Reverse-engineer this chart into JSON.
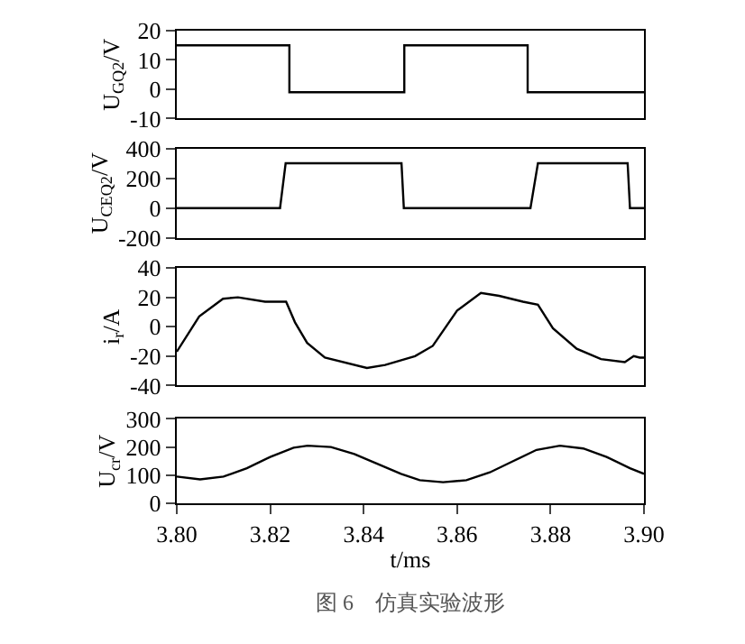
{
  "chart_data": [
    {
      "type": "line",
      "ylabel": "U$_{GQ2}$/V",
      "x": [
        3.8,
        3.8241,
        3.8241,
        3.8487,
        3.8487,
        3.8751,
        3.8751,
        3.9
      ],
      "values": [
        15,
        15,
        -1,
        -1,
        15,
        15,
        -1,
        -1
      ],
      "color": "#000000",
      "xlim": [
        3.8,
        3.9
      ],
      "ylim": [
        -10,
        20
      ],
      "yticks": [
        -10,
        0,
        10,
        20
      ],
      "tick_labels": "y"
    },
    {
      "type": "line",
      "ylabel": "U$_{CEQ2}$/V",
      "x": [
        3.8,
        3.8221,
        3.8233,
        3.8481,
        3.8486,
        3.8757,
        3.8773,
        3.8965,
        3.897,
        3.9
      ],
      "values": [
        0,
        0,
        300,
        300,
        0,
        0,
        300,
        300,
        0,
        0
      ],
      "color": "#000000",
      "xlim": [
        3.8,
        3.9
      ],
      "ylim": [
        -200,
        400
      ],
      "yticks": [
        -200,
        0,
        200,
        400
      ],
      "tick_labels": "y"
    },
    {
      "type": "line",
      "ylabel": "i$_{r}$/A",
      "x": [
        3.8,
        3.8048,
        3.8099,
        3.8131,
        3.8189,
        3.8234,
        3.8253,
        3.8279,
        3.8317,
        3.8407,
        3.8446,
        3.851,
        3.8548,
        3.86,
        3.8651,
        3.869,
        3.8741,
        3.8773,
        3.8805,
        3.8856,
        3.8908,
        3.8959,
        3.8978,
        3.8991,
        3.9
      ],
      "values": [
        -17,
        7,
        19,
        20,
        17,
        17,
        3,
        -11,
        -21,
        -28,
        -26,
        -20,
        -13,
        11,
        23,
        21,
        17,
        15,
        -1,
        -15,
        -22,
        -24,
        -20,
        -21,
        -21
      ],
      "color": "#000000",
      "xlim": [
        3.8,
        3.9
      ],
      "ylim": [
        -40,
        40
      ],
      "yticks": [
        -40,
        -20,
        0,
        20,
        40
      ],
      "tick_labels": "y"
    },
    {
      "type": "line",
      "ylabel": "U$_{cr}$/V",
      "xlabel": "t/ms",
      "x": [
        3.8,
        3.805,
        3.81,
        3.815,
        3.82,
        3.825,
        3.828,
        3.833,
        3.838,
        3.843,
        3.848,
        3.852,
        3.857,
        3.862,
        3.867,
        3.872,
        3.877,
        3.882,
        3.887,
        3.892,
        3.897,
        3.9
      ],
      "values": [
        95,
        85,
        95,
        125,
        165,
        198,
        205,
        200,
        175,
        140,
        105,
        82,
        75,
        82,
        110,
        150,
        190,
        205,
        195,
        165,
        125,
        105
      ],
      "color": "#000000",
      "xlim": [
        3.8,
        3.9
      ],
      "xticks": [
        {
          "value": 3.8,
          "label": "3.80"
        },
        {
          "value": 3.82,
          "label": "3.82"
        },
        {
          "value": 3.84,
          "label": "3.84"
        },
        {
          "value": 3.86,
          "label": "3.86"
        },
        {
          "value": 3.88,
          "label": "3.88"
        },
        {
          "value": 3.9,
          "label": "3.90"
        }
      ],
      "ylim": [
        0,
        300
      ],
      "yticks": [
        0,
        100,
        200,
        300
      ],
      "annotations": [
        "图 6　仿真实验波形"
      ]
    }
  ]
}
